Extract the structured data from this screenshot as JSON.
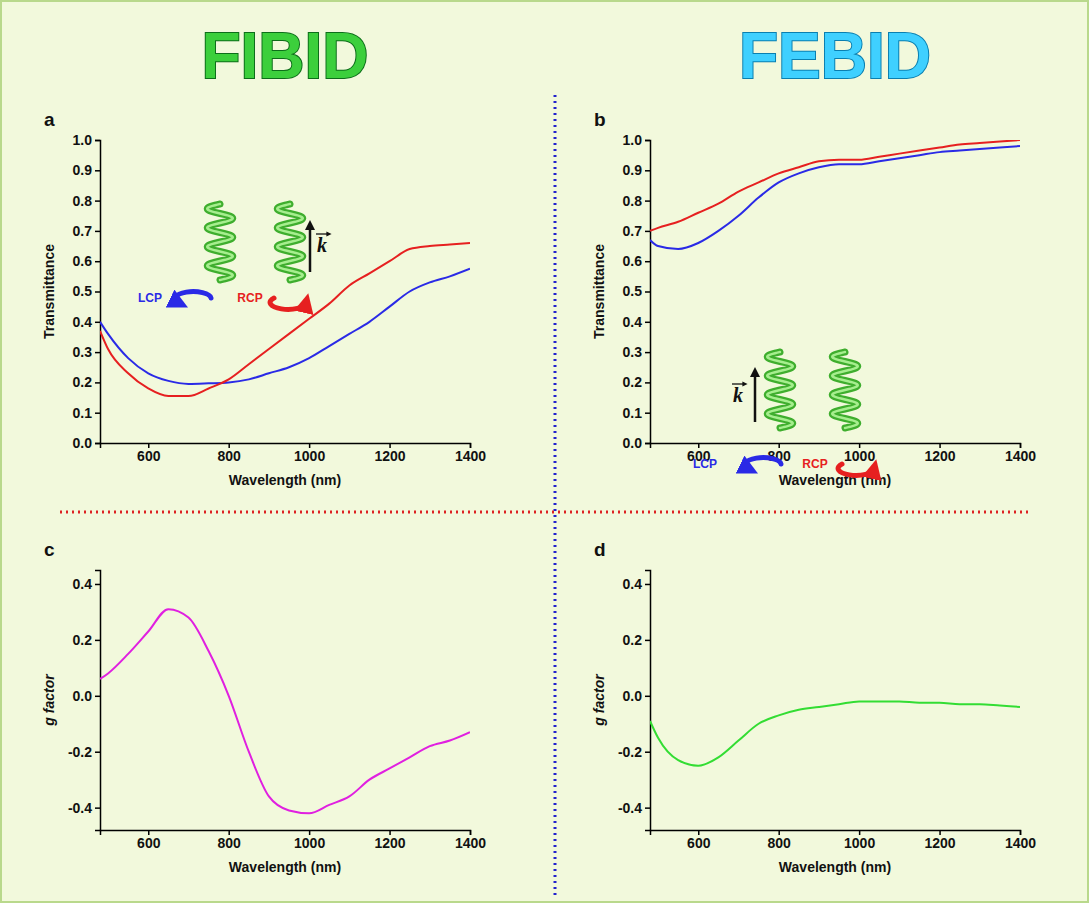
{
  "columns": [
    "FIBID",
    "FEBID"
  ],
  "chart_data": [
    {
      "type": "line",
      "panel_label": "a",
      "x_label": "Wavelength (nm)",
      "y_label": "Transmittance",
      "x": [
        480,
        500,
        550,
        600,
        650,
        700,
        750,
        800,
        850,
        900,
        950,
        1000,
        1050,
        1100,
        1150,
        1200,
        1250,
        1300,
        1350,
        1400
      ],
      "series": [
        {
          "name": "LCP",
          "color": "#2a2ae6",
          "values": [
            0.4,
            0.36,
            0.28,
            0.23,
            0.205,
            0.195,
            0.197,
            0.2,
            0.21,
            0.23,
            0.25,
            0.28,
            0.32,
            0.36,
            0.4,
            0.45,
            0.5,
            0.53,
            0.55,
            0.575
          ]
        },
        {
          "name": "RCP",
          "color": "#e62020",
          "values": [
            0.37,
            0.31,
            0.23,
            0.18,
            0.155,
            0.155,
            0.18,
            0.21,
            0.26,
            0.31,
            0.36,
            0.41,
            0.46,
            0.52,
            0.56,
            0.6,
            0.64,
            0.65,
            0.655,
            0.66
          ]
        }
      ],
      "xlim": [
        480,
        1400
      ],
      "xticks": [
        600,
        800,
        1000,
        1200,
        1400
      ],
      "ylim": [
        0,
        1
      ],
      "yticks": [
        {
          "value": 0,
          "label": "0.0"
        },
        0.1,
        0.2,
        0.3,
        0.4,
        0.5,
        0.6,
        0.7,
        0.8,
        0.9,
        {
          "value": 1,
          "label": "1.0"
        }
      ],
      "legend": "top-left",
      "annotations": [
        "k"
      ]
    },
    {
      "type": "line",
      "panel_label": "b",
      "x_label": "Wavelength (nm)",
      "y_label": "Transmittance",
      "x": [
        480,
        500,
        550,
        600,
        650,
        700,
        750,
        800,
        850,
        900,
        950,
        1000,
        1050,
        1100,
        1150,
        1200,
        1250,
        1300,
        1350,
        1400
      ],
      "series": [
        {
          "name": "LCP",
          "color": "#2a2ae6",
          "values": [
            0.67,
            0.65,
            0.64,
            0.66,
            0.7,
            0.75,
            0.81,
            0.86,
            0.89,
            0.91,
            0.92,
            0.92,
            0.93,
            0.94,
            0.95,
            0.96,
            0.965,
            0.97,
            0.975,
            0.98
          ]
        },
        {
          "name": "RCP",
          "color": "#e62020",
          "values": [
            0.7,
            0.71,
            0.73,
            0.76,
            0.79,
            0.83,
            0.86,
            0.89,
            0.91,
            0.93,
            0.935,
            0.935,
            0.945,
            0.955,
            0.965,
            0.975,
            0.985,
            0.99,
            0.995,
            1.0
          ]
        }
      ],
      "xlim": [
        480,
        1400
      ],
      "xticks": [
        600,
        800,
        1000,
        1200,
        1400
      ],
      "ylim": [
        0,
        1
      ],
      "yticks": [
        {
          "value": 0,
          "label": "0.0"
        },
        0.1,
        0.2,
        0.3,
        0.4,
        0.5,
        0.6,
        0.7,
        0.8,
        0.9,
        {
          "value": 1,
          "label": "1.0"
        }
      ],
      "legend": "center-right",
      "annotations": [
        "k"
      ]
    },
    {
      "type": "line",
      "panel_label": "c",
      "x_label": "Wavelength (nm)",
      "y_label": "g factor",
      "x": [
        480,
        500,
        550,
        600,
        650,
        700,
        750,
        800,
        850,
        900,
        950,
        1000,
        1050,
        1100,
        1150,
        1200,
        1250,
        1300,
        1350,
        1400
      ],
      "series": [
        {
          "color": "#e020e0",
          "values": [
            0.06,
            0.08,
            0.15,
            0.23,
            0.31,
            0.28,
            0.16,
            0.0,
            -0.2,
            -0.36,
            -0.41,
            -0.42,
            -0.39,
            -0.36,
            -0.3,
            -0.26,
            -0.22,
            -0.18,
            -0.16,
            -0.13
          ]
        }
      ],
      "xlim": [
        480,
        1400
      ],
      "xticks": [
        600,
        800,
        1000,
        1200,
        1400
      ],
      "ylim": [
        -0.48,
        0.45
      ],
      "yticks": [
        -0.4,
        -0.2,
        {
          "value": 0,
          "label": "0.0"
        },
        0.2,
        0.4
      ]
    },
    {
      "type": "line",
      "panel_label": "d",
      "x_label": "Wavelength (nm)",
      "y_label": "g factor",
      "x": [
        480,
        500,
        550,
        600,
        650,
        700,
        750,
        800,
        850,
        900,
        950,
        1000,
        1050,
        1100,
        1150,
        1200,
        1250,
        1300,
        1350,
        1400
      ],
      "series": [
        {
          "color": "#33dd33",
          "values": [
            -0.09,
            -0.15,
            -0.23,
            -0.25,
            -0.22,
            -0.16,
            -0.1,
            -0.07,
            -0.05,
            -0.04,
            -0.03,
            -0.02,
            -0.02,
            -0.02,
            -0.025,
            -0.025,
            -0.03,
            -0.03,
            -0.035,
            -0.04
          ]
        }
      ],
      "xlim": [
        480,
        1400
      ],
      "xticks": [
        600,
        800,
        1000,
        1200,
        1400
      ],
      "ylim": [
        -0.48,
        0.45
      ],
      "yticks": [
        -0.4,
        -0.2,
        {
          "value": 0,
          "label": "0.0"
        },
        0.2,
        0.4
      ]
    }
  ]
}
